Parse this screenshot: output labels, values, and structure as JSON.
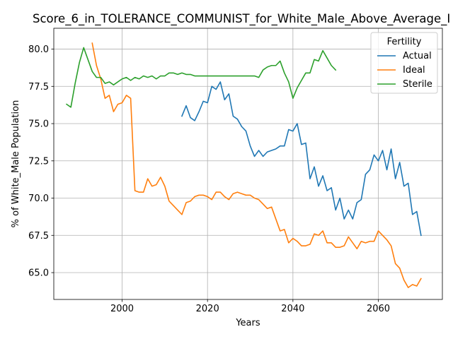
{
  "chart_data": {
    "type": "line",
    "title": "Score_6_in_TOLERANCE_COMMUNIST_for_White_Male_Above_Average_I",
    "xlabel": "Years",
    "ylabel": "% of White_Male Population",
    "xlim": [
      1984,
      2075
    ],
    "ylim": [
      63.2,
      81.4
    ],
    "xticks": [
      2000,
      2020,
      2040,
      2060
    ],
    "yticks": [
      65.0,
      67.5,
      70.0,
      72.5,
      75.0,
      77.5,
      80.0
    ],
    "ytick_labels": [
      "65.0",
      "67.5",
      "70.0",
      "72.5",
      "75.0",
      "77.5",
      "80.0"
    ],
    "grid": true,
    "legend": {
      "title": "Fertility",
      "position": "upper right"
    },
    "series": [
      {
        "name": "Actual",
        "color": "#1f77b4",
        "x": [
          2014,
          2015,
          2016,
          2017,
          2018,
          2019,
          2020,
          2021,
          2022,
          2023,
          2024,
          2025,
          2026,
          2027,
          2028,
          2029,
          2030,
          2031,
          2032,
          2033,
          2034,
          2035,
          2036,
          2037,
          2038,
          2039,
          2040,
          2041,
          2042,
          2043,
          2044,
          2045,
          2046,
          2047,
          2048,
          2049,
          2050,
          2051,
          2052,
          2053,
          2054,
          2055,
          2056,
          2057,
          2058,
          2059,
          2060,
          2061,
          2062,
          2063,
          2064,
          2065,
          2066,
          2067,
          2068,
          2069,
          2070
        ],
        "y": [
          75.5,
          76.2,
          75.4,
          75.2,
          75.8,
          76.5,
          76.4,
          77.5,
          77.3,
          77.8,
          76.6,
          77.0,
          75.5,
          75.3,
          74.8,
          74.5,
          73.5,
          72.8,
          73.2,
          72.8,
          73.1,
          73.2,
          73.3,
          73.5,
          73.5,
          74.6,
          74.5,
          75.0,
          73.6,
          73.7,
          71.3,
          72.1,
          70.8,
          71.5,
          70.5,
          70.7,
          69.2,
          70.0,
          68.6,
          69.2,
          68.6,
          69.7,
          69.9,
          71.6,
          71.9,
          72.9,
          72.5,
          73.2,
          71.9,
          73.3,
          71.3,
          72.4,
          70.8,
          71.0,
          68.9,
          69.1,
          67.5
        ]
      },
      {
        "name": "Ideal",
        "color": "#ff7f0e",
        "x": [
          1993,
          1994,
          1995,
          1996,
          1997,
          1998,
          1999,
          2000,
          2001,
          2002,
          2003,
          2004,
          2005,
          2006,
          2007,
          2008,
          2009,
          2010,
          2011,
          2012,
          2013,
          2014,
          2015,
          2016,
          2017,
          2018,
          2019,
          2020,
          2021,
          2022,
          2023,
          2024,
          2025,
          2026,
          2027,
          2028,
          2029,
          2030,
          2031,
          2032,
          2033,
          2034,
          2035,
          2036,
          2037,
          2038,
          2039,
          2040,
          2041,
          2042,
          2043,
          2044,
          2045,
          2046,
          2047,
          2048,
          2049,
          2050,
          2051,
          2052,
          2053,
          2054,
          2055,
          2056,
          2057,
          2058,
          2059,
          2060,
          2061,
          2062,
          2063,
          2064,
          2065,
          2066,
          2067,
          2068,
          2069,
          2070
        ],
        "y": [
          80.4,
          78.9,
          78.0,
          76.7,
          76.9,
          75.8,
          76.3,
          76.4,
          76.9,
          76.7,
          70.5,
          70.4,
          70.4,
          71.3,
          70.8,
          70.9,
          71.4,
          70.8,
          69.8,
          69.5,
          69.2,
          68.9,
          69.7,
          69.8,
          70.1,
          70.2,
          70.2,
          70.1,
          69.9,
          70.4,
          70.4,
          70.1,
          69.9,
          70.3,
          70.4,
          70.3,
          70.2,
          70.2,
          70.0,
          69.9,
          69.6,
          69.3,
          69.4,
          68.6,
          67.8,
          67.9,
          67.0,
          67.3,
          67.1,
          66.8,
          66.8,
          66.9,
          67.6,
          67.5,
          67.8,
          67.0,
          67.0,
          66.7,
          66.7,
          66.8,
          67.4,
          67.0,
          66.6,
          67.1,
          67.0,
          67.1,
          67.1,
          67.8,
          67.5,
          67.2,
          66.8,
          65.6,
          65.3,
          64.5,
          64.0,
          64.2,
          64.1,
          64.6
        ]
      },
      {
        "name": "Sterile",
        "color": "#2ca02c",
        "x": [
          1987,
          1988,
          1989,
          1990,
          1991,
          1992,
          1993,
          1994,
          1995,
          1996,
          1997,
          1998,
          1999,
          2000,
          2001,
          2002,
          2003,
          2004,
          2005,
          2006,
          2007,
          2008,
          2009,
          2010,
          2011,
          2012,
          2013,
          2014,
          2015,
          2016,
          2017,
          2018,
          2019,
          2020,
          2021,
          2022,
          2023,
          2024,
          2025,
          2026,
          2027,
          2028,
          2029,
          2030,
          2031,
          2032,
          2033,
          2034,
          2035,
          2036,
          2037,
          2038,
          2039,
          2040,
          2041,
          2042,
          2043,
          2044,
          2045,
          2046,
          2047,
          2048,
          2049,
          2050
        ],
        "y": [
          76.3,
          76.1,
          77.7,
          79.1,
          80.1,
          79.3,
          78.5,
          78.1,
          78.1,
          77.7,
          77.8,
          77.6,
          77.8,
          78.0,
          78.1,
          77.9,
          78.1,
          78.0,
          78.2,
          78.1,
          78.2,
          78.0,
          78.2,
          78.2,
          78.4,
          78.4,
          78.3,
          78.4,
          78.3,
          78.3,
          78.2,
          78.2,
          78.2,
          78.2,
          78.2,
          78.2,
          78.2,
          78.2,
          78.2,
          78.2,
          78.2,
          78.2,
          78.2,
          78.2,
          78.2,
          78.1,
          78.6,
          78.8,
          78.9,
          78.9,
          79.2,
          78.4,
          77.8,
          76.7,
          77.4,
          77.9,
          78.4,
          78.4,
          79.3,
          79.2,
          79.9,
          79.4,
          78.9,
          78.6
        ]
      }
    ]
  }
}
